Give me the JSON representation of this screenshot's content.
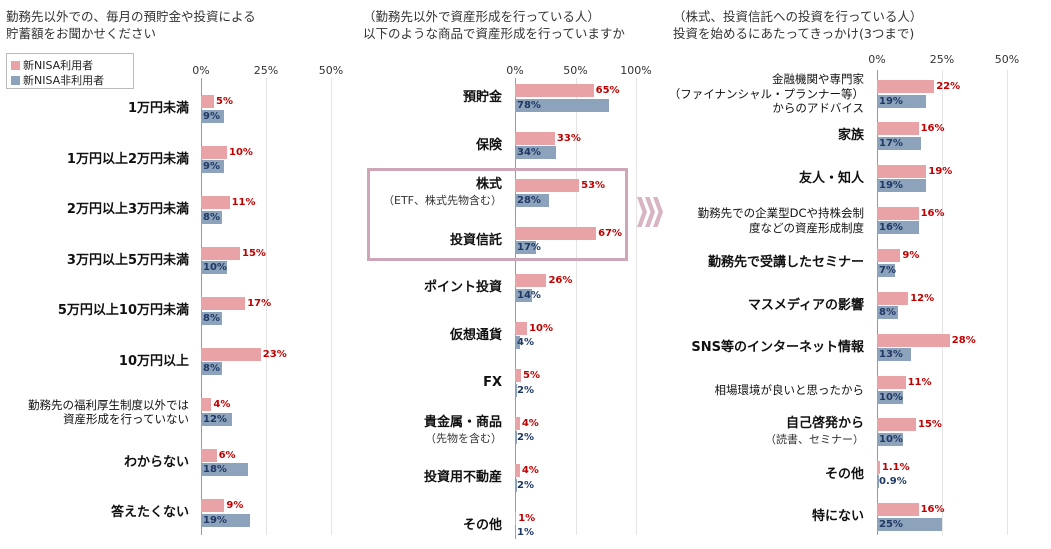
{
  "colors": {
    "nisa": "#e9a3a6",
    "non_nisa": "#8da2bb",
    "nisa_label": "#c00000",
    "non_nisa_label": "#1f3864",
    "highlight": "#cfa6b8"
  },
  "legend": {
    "nisa": "新NISA利用者",
    "non_nisa": "新NISA非利用者"
  },
  "chart_data": [
    {
      "type": "bar",
      "orientation": "horizontal",
      "title_lines": [
        "勤務先以外での、毎月の預貯金や投資による",
        "貯蓄額をお聞かせください"
      ],
      "ticks": [
        "0%",
        "25%",
        "50%"
      ],
      "xlim": [
        0,
        50
      ],
      "categories": [
        {
          "main": "1万円未満"
        },
        {
          "main": "1万円以上2万円未満"
        },
        {
          "main": "2万円以上3万円未満"
        },
        {
          "main": "3万円以上5万円未満"
        },
        {
          "main": "5万円以上10万円未満"
        },
        {
          "main": "10万円以上"
        },
        {
          "lines": [
            "勤務先の福利厚生制度以外では",
            "資産形成を行っていない"
          ]
        },
        {
          "main": "わからない"
        },
        {
          "main": "答えたくない"
        }
      ],
      "series": [
        {
          "values": [
            5,
            10,
            11,
            15,
            17,
            23,
            4,
            6,
            9
          ],
          "labels": [
            "5%",
            "10%",
            "11%",
            "15%",
            "17%",
            "23%",
            "4%",
            "6%",
            "9%"
          ]
        },
        {
          "values": [
            9,
            9,
            8,
            10,
            8,
            8,
            12,
            18,
            19
          ],
          "labels": [
            "9%",
            "9%",
            "8%",
            "10%",
            "8%",
            "8%",
            "12%",
            "18%",
            "19%"
          ]
        }
      ]
    },
    {
      "type": "bar",
      "orientation": "horizontal",
      "title_lines": [
        "（勤務先以外で資産形成を行っている人）",
        "以下のような商品で資産形成を行っていますか"
      ],
      "ticks": [
        "0%",
        "50%",
        "100%"
      ],
      "xlim": [
        0,
        100
      ],
      "categories": [
        {
          "main": "預貯金"
        },
        {
          "main": "保険"
        },
        {
          "main": "株式",
          "sub": "（ETF、株式先物含む）"
        },
        {
          "main": "投資信託"
        },
        {
          "main": "ポイント投資"
        },
        {
          "main": "仮想通貨"
        },
        {
          "main": "FX"
        },
        {
          "main": "貴金属・商品",
          "sub": "（先物を含む）"
        },
        {
          "main": "投資用不動産"
        },
        {
          "main": "その他"
        }
      ],
      "series": [
        {
          "values": [
            65,
            33,
            53,
            67,
            26,
            10,
            5,
            4,
            4,
            1
          ],
          "labels": [
            "65%",
            "33%",
            "53%",
            "67%",
            "26%",
            "10%",
            "5%",
            "4%",
            "4%",
            "1%"
          ]
        },
        {
          "values": [
            78,
            34,
            28,
            17,
            14,
            4,
            2,
            2,
            2,
            1
          ],
          "labels": [
            "78%",
            "34%",
            "28%",
            "17%",
            "14%",
            "4%",
            "2%",
            "2%",
            "2%",
            "1%"
          ]
        }
      ]
    },
    {
      "type": "bar",
      "orientation": "horizontal",
      "title_lines": [
        "（株式、投資信託への投資を行っている人）",
        "投資を始めるにあたってきっかけ(3つまで)"
      ],
      "ticks": [
        "0%",
        "25%",
        "50%"
      ],
      "xlim": [
        0,
        50
      ],
      "categories": [
        {
          "lines": [
            "金融機関や専門家",
            "（ファイナンシャル・プランナー等）",
            "からのアドバイス"
          ]
        },
        {
          "main": "家族"
        },
        {
          "main": "友人・知人"
        },
        {
          "lines": [
            "勤務先での企業型DCや持株会制",
            "度などの資産形成制度"
          ]
        },
        {
          "main": "勤務先で受講したセミナー"
        },
        {
          "main": "マスメディアの影響"
        },
        {
          "main": "SNS等のインターネット情報"
        },
        {
          "lines": [
            "相場環境が良いと思ったから"
          ]
        },
        {
          "main": "自己啓発から",
          "sub": "（読書、セミナー）"
        },
        {
          "main": "その他"
        },
        {
          "main": "特にない"
        }
      ],
      "series": [
        {
          "values": [
            22,
            16,
            19,
            16,
            9,
            12,
            28,
            11,
            15,
            1.1,
            16
          ],
          "labels": [
            "22%",
            "16%",
            "19%",
            "16%",
            "9%",
            "12%",
            "28%",
            "11%",
            "15%",
            "1.1%",
            "16%"
          ]
        },
        {
          "values": [
            19,
            17,
            19,
            16,
            7,
            8,
            13,
            10,
            10,
            0.9,
            25
          ],
          "labels": [
            "19%",
            "17%",
            "19%",
            "16%",
            "7%",
            "8%",
            "13%",
            "10%",
            "10%",
            "0.9%",
            "25%"
          ]
        }
      ]
    }
  ]
}
